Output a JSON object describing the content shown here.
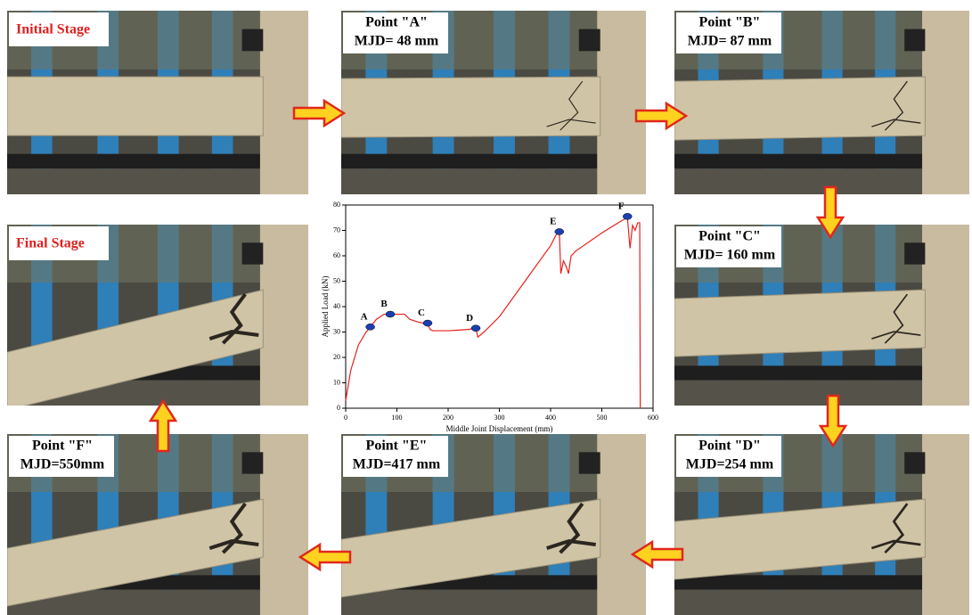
{
  "panels": [
    {
      "title": "Initial Stage"
    },
    {
      "title": "Point \"A\"",
      "subtitle": "MJD= 48 mm"
    },
    {
      "title": "Point \"B\"",
      "subtitle": "MJD= 87 mm"
    },
    {
      "title": "Point \"C\"",
      "subtitle": "MJD= 160 mm"
    },
    {
      "title": "Point \"D\"",
      "subtitle": "MJD=254 mm"
    },
    {
      "title": "Point \"E\"",
      "subtitle": "MJD=417 mm"
    },
    {
      "title": "Point \"F\"",
      "subtitle": "MJD=550mm"
    },
    {
      "title": "Final Stage"
    }
  ],
  "chart_data": {
    "type": "line",
    "x_label": "Middle Joint Displacement (mm)",
    "y_label": "Applied Load (kN)",
    "xlim": [
      0,
      600
    ],
    "xticks": [
      0,
      100,
      200,
      300,
      400,
      500,
      600
    ],
    "ylim": [
      0,
      80
    ],
    "yticks": [
      0,
      10,
      20,
      30,
      40,
      50,
      60,
      70,
      80
    ],
    "series": [
      {
        "color": "#e8201c",
        "x": [
          0,
          10,
          25,
          40,
          48,
          60,
          75,
          87,
          100,
          115,
          125,
          140,
          160,
          165,
          170,
          200,
          240,
          254,
          258,
          270,
          300,
          350,
          400,
          410,
          417,
          420,
          425,
          430,
          435,
          440,
          450,
          500,
          540,
          550,
          555,
          560,
          565,
          570,
          574,
          575
        ],
        "values": [
          3,
          15,
          25,
          30,
          32,
          35,
          37,
          37,
          37,
          37,
          35,
          34,
          33,
          31,
          30.5,
          30.5,
          31,
          31.5,
          28,
          30,
          36,
          50,
          64,
          68,
          69.5,
          53,
          58,
          56,
          53,
          60,
          62,
          69,
          74,
          75,
          63,
          72,
          70,
          73,
          73,
          0
        ]
      }
    ],
    "markers": {
      "color": "#1a3fb5",
      "labels": [
        "A",
        "B",
        "C",
        "D",
        "E",
        "F"
      ],
      "x": [
        48,
        87,
        160,
        254,
        417,
        550
      ],
      "y": [
        32,
        37,
        33.5,
        31.5,
        69.5,
        75.5
      ]
    }
  }
}
